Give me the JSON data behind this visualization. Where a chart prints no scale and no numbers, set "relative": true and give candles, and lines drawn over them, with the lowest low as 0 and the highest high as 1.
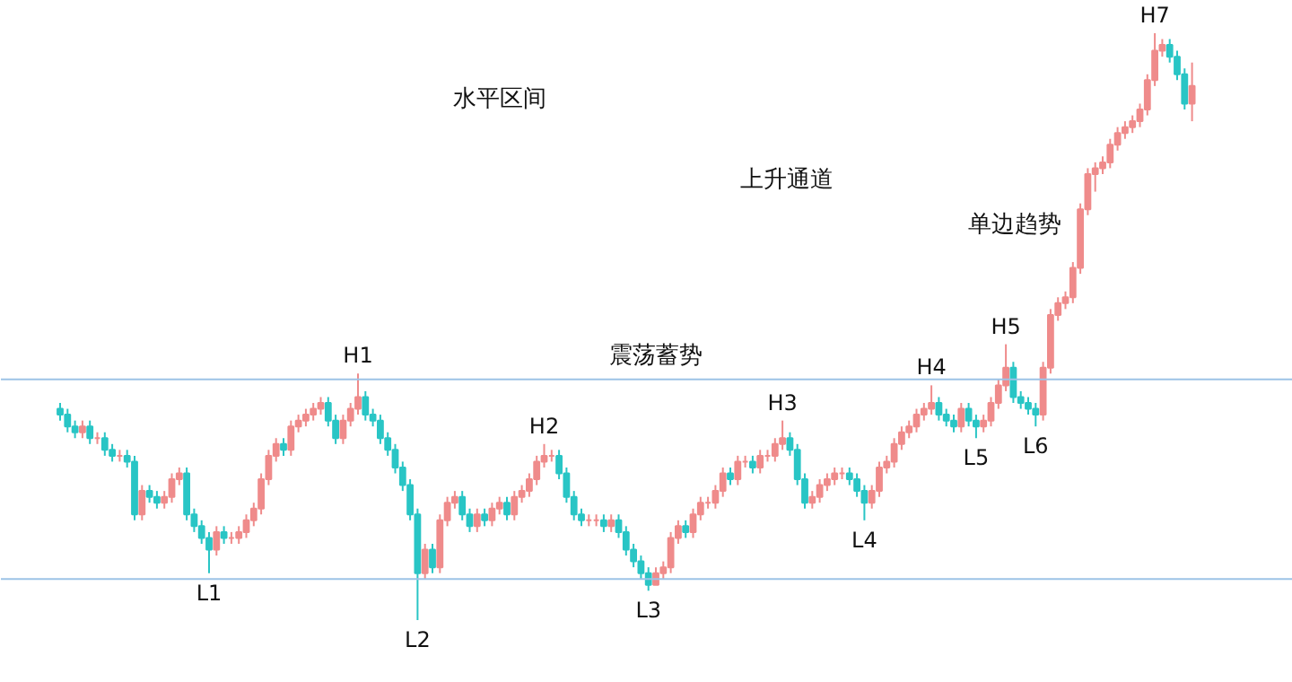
{
  "chart_data": {
    "type": "candlestick",
    "relative": true,
    "colors": [
      "#29c5c5",
      "#29c5c5",
      "#29c5c5",
      "#ef8b8b",
      "#29c5c5",
      "#ef8b8b",
      "#29c5c5",
      "#29c5c5",
      "#ef8b8b",
      "#29c5c5",
      "#29c5c5",
      "#ef8b8b",
      "#29c5c5",
      "#29c5c5",
      "#ef8b8b",
      "#ef8b8b",
      "#ef8b8b",
      "#29c5c5",
      "#29c5c5",
      "#29c5c5",
      "#29c5c5",
      "#ef8b8b",
      "#29c5c5",
      "#ef8b8b",
      "#ef8b8b",
      "#ef8b8b",
      "#ef8b8b",
      "#ef8b8b",
      "#ef8b8b",
      "#ef8b8b",
      "#29c5c5",
      "#ef8b8b",
      "#ef8b8b",
      "#ef8b8b",
      "#ef8b8b",
      "#ef8b8b",
      "#29c5c5",
      "#29c5c5",
      "#ef8b8b",
      "#ef8b8b",
      "#ef8b8b",
      "#29c5c5",
      "#29c5c5",
      "#29c5c5",
      "#29c5c5",
      "#29c5c5",
      "#29c5c5",
      "#29c5c5",
      "#29c5c5",
      "#ef8b8b",
      "#29c5c5",
      "#ef8b8b",
      "#ef8b8b",
      "#ef8b8b",
      "#29c5c5",
      "#29c5c5",
      "#ef8b8b",
      "#29c5c5",
      "#ef8b8b",
      "#ef8b8b",
      "#29c5c5",
      "#ef8b8b",
      "#ef8b8b",
      "#ef8b8b",
      "#ef8b8b",
      "#ef8b8b",
      "#ef8b8b",
      "#29c5c5",
      "#29c5c5",
      "#29c5c5",
      "#29c5c5",
      "#ef8b8b",
      "#ef8b8b",
      "#29c5c5",
      "#ef8b8b",
      "#29c5c5",
      "#29c5c5",
      "#29c5c5",
      "#29c5c5",
      "#29c5c5",
      "#ef8b8b",
      "#ef8b8b",
      "#ef8b8b",
      "#ef8b8b",
      "#29c5c5",
      "#ef8b8b",
      "#ef8b8b",
      "#ef8b8b",
      "#ef8b8b",
      "#ef8b8b",
      "#29c5c5",
      "#ef8b8b",
      "#ef8b8b",
      "#29c5c5",
      "#ef8b8b",
      "#ef8b8b",
      "#ef8b8b",
      "#ef8b8b",
      "#29c5c5",
      "#29c5c5",
      "#29c5c5",
      "#ef8b8b",
      "#ef8b8b",
      "#ef8b8b",
      "#ef8b8b",
      "#ef8b8b",
      "#29c5c5",
      "#29c5c5",
      "#29c5c5",
      "#ef8b8b",
      "#ef8b8b",
      "#ef8b8b",
      "#ef8b8b",
      "#ef8b8b",
      "#ef8b8b",
      "#ef8b8b",
      "#ef8b8b",
      "#ef8b8b",
      "#29c5c5",
      "#29c5c5",
      "#29c5c5",
      "#ef8b8b",
      "#29c5c5",
      "#29c5c5",
      "#ef8b8b",
      "#ef8b8b",
      "#ef8b8b",
      "#ef8b8b",
      "#29c5c5",
      "#29c5c5",
      "#29c5c5",
      "#29c5c5",
      "#ef8b8b",
      "#ef8b8b",
      "#ef8b8b",
      "#ef8b8b",
      "#ef8b8b",
      "#ef8b8b",
      "#ef8b8b",
      "#ef8b8b",
      "#ef8b8b",
      "#ef8b8b",
      "#ef8b8b",
      "#ef8b8b",
      "#ef8b8b",
      "#ef8b8b",
      "#ef8b8b",
      "#ef8b8b",
      "#ef8b8b",
      "#29c5c5",
      "#29c5c5",
      "#29c5c5",
      "#ef8b8b"
    ],
    "categories": [
      null,
      null,
      null,
      null,
      null,
      null,
      null,
      null,
      null,
      null,
      null,
      null,
      null,
      null,
      null,
      null,
      null,
      null,
      null,
      null,
      null,
      null,
      null,
      null,
      null,
      null,
      null,
      null,
      null,
      null,
      null,
      null,
      null,
      null,
      null,
      null,
      null,
      null,
      null,
      null,
      null,
      null,
      null,
      null,
      null,
      null,
      null,
      null,
      null,
      null,
      null,
      null,
      null,
      null,
      null,
      null,
      null,
      null,
      null,
      null,
      null,
      null,
      null,
      null,
      null,
      null,
      null,
      null,
      null,
      null,
      null,
      null,
      null,
      null,
      null,
      null,
      null,
      null,
      null,
      null,
      null,
      null,
      null,
      null,
      null,
      null,
      null,
      null,
      null,
      null,
      null,
      null,
      null,
      null,
      null,
      null,
      null,
      null,
      null,
      null,
      null,
      null,
      null,
      null,
      null,
      null,
      null,
      null,
      null,
      null,
      null,
      null,
      null,
      null,
      null,
      null,
      null,
      null,
      null,
      null,
      null,
      null,
      null,
      null,
      null,
      null,
      null,
      null,
      null,
      null,
      null,
      null,
      null,
      null,
      null,
      null,
      null,
      null,
      null,
      null,
      null,
      null,
      null,
      null,
      null,
      null,
      null,
      null,
      null,
      null,
      null,
      null,
      null
    ],
    "ohlc": [
      [
        0.36,
        0.37,
        0.34,
        0.35
      ],
      [
        0.35,
        0.36,
        0.32,
        0.33
      ],
      [
        0.33,
        0.34,
        0.31,
        0.32
      ],
      [
        0.32,
        0.34,
        0.31,
        0.33
      ],
      [
        0.33,
        0.34,
        0.3,
        0.31
      ],
      [
        0.31,
        0.32,
        0.3,
        0.31
      ],
      [
        0.31,
        0.32,
        0.28,
        0.29
      ],
      [
        0.29,
        0.3,
        0.27,
        0.28
      ],
      [
        0.28,
        0.29,
        0.27,
        0.28
      ],
      [
        0.28,
        0.29,
        0.26,
        0.27
      ],
      [
        0.27,
        0.28,
        0.17,
        0.18
      ],
      [
        0.18,
        0.23,
        0.17,
        0.22
      ],
      [
        0.22,
        0.23,
        0.2,
        0.21
      ],
      [
        0.21,
        0.22,
        0.19,
        0.2
      ],
      [
        0.2,
        0.22,
        0.19,
        0.21
      ],
      [
        0.21,
        0.25,
        0.2,
        0.24
      ],
      [
        0.24,
        0.26,
        0.23,
        0.25
      ],
      [
        0.25,
        0.26,
        0.17,
        0.18
      ],
      [
        0.18,
        0.19,
        0.15,
        0.16
      ],
      [
        0.16,
        0.17,
        0.13,
        0.14
      ],
      [
        0.14,
        0.15,
        0.08,
        0.12
      ],
      [
        0.12,
        0.16,
        0.11,
        0.15
      ],
      [
        0.15,
        0.16,
        0.13,
        0.14
      ],
      [
        0.14,
        0.15,
        0.13,
        0.14
      ],
      [
        0.14,
        0.16,
        0.13,
        0.15
      ],
      [
        0.15,
        0.18,
        0.14,
        0.17
      ],
      [
        0.17,
        0.2,
        0.16,
        0.19
      ],
      [
        0.19,
        0.25,
        0.18,
        0.24
      ],
      [
        0.24,
        0.29,
        0.23,
        0.28
      ],
      [
        0.28,
        0.31,
        0.27,
        0.3
      ],
      [
        0.3,
        0.31,
        0.28,
        0.29
      ],
      [
        0.29,
        0.34,
        0.28,
        0.33
      ],
      [
        0.33,
        0.35,
        0.32,
        0.34
      ],
      [
        0.34,
        0.36,
        0.33,
        0.35
      ],
      [
        0.35,
        0.37,
        0.34,
        0.36
      ],
      [
        0.36,
        0.38,
        0.35,
        0.37
      ],
      [
        0.37,
        0.38,
        0.33,
        0.34
      ],
      [
        0.34,
        0.35,
        0.3,
        0.31
      ],
      [
        0.31,
        0.35,
        0.3,
        0.34
      ],
      [
        0.34,
        0.37,
        0.33,
        0.36
      ],
      [
        0.36,
        0.42,
        0.35,
        0.38
      ],
      [
        0.38,
        0.39,
        0.34,
        0.35
      ],
      [
        0.35,
        0.36,
        0.33,
        0.34
      ],
      [
        0.34,
        0.35,
        0.3,
        0.31
      ],
      [
        0.31,
        0.32,
        0.28,
        0.29
      ],
      [
        0.29,
        0.3,
        0.25,
        0.26
      ],
      [
        0.26,
        0.27,
        0.22,
        0.23
      ],
      [
        0.23,
        0.24,
        0.17,
        0.18
      ],
      [
        0.18,
        0.19,
        0.0,
        0.08
      ],
      [
        0.08,
        0.13,
        0.07,
        0.12
      ],
      [
        0.12,
        0.13,
        0.08,
        0.09
      ],
      [
        0.09,
        0.18,
        0.08,
        0.17
      ],
      [
        0.17,
        0.21,
        0.16,
        0.2
      ],
      [
        0.2,
        0.22,
        0.19,
        0.21
      ],
      [
        0.21,
        0.22,
        0.17,
        0.18
      ],
      [
        0.18,
        0.19,
        0.15,
        0.16
      ],
      [
        0.16,
        0.19,
        0.15,
        0.18
      ],
      [
        0.18,
        0.19,
        0.16,
        0.17
      ],
      [
        0.17,
        0.2,
        0.16,
        0.19
      ],
      [
        0.19,
        0.21,
        0.18,
        0.2
      ],
      [
        0.2,
        0.21,
        0.17,
        0.18
      ],
      [
        0.18,
        0.22,
        0.17,
        0.21
      ],
      [
        0.21,
        0.23,
        0.2,
        0.22
      ],
      [
        0.22,
        0.25,
        0.21,
        0.24
      ],
      [
        0.24,
        0.28,
        0.23,
        0.27
      ],
      [
        0.27,
        0.3,
        0.26,
        0.28
      ],
      [
        0.28,
        0.29,
        0.27,
        0.28
      ],
      [
        0.28,
        0.29,
        0.24,
        0.25
      ],
      [
        0.25,
        0.26,
        0.2,
        0.21
      ],
      [
        0.21,
        0.22,
        0.17,
        0.18
      ],
      [
        0.18,
        0.19,
        0.16,
        0.17
      ],
      [
        0.17,
        0.18,
        0.16,
        0.17
      ],
      [
        0.17,
        0.18,
        0.16,
        0.17
      ],
      [
        0.17,
        0.18,
        0.15,
        0.16
      ],
      [
        0.16,
        0.18,
        0.15,
        0.17
      ],
      [
        0.17,
        0.18,
        0.14,
        0.15
      ],
      [
        0.15,
        0.16,
        0.11,
        0.12
      ],
      [
        0.12,
        0.13,
        0.09,
        0.1
      ],
      [
        0.1,
        0.11,
        0.07,
        0.08
      ],
      [
        0.08,
        0.09,
        0.05,
        0.06
      ],
      [
        0.06,
        0.09,
        0.06,
        0.08
      ],
      [
        0.08,
        0.1,
        0.07,
        0.09
      ],
      [
        0.09,
        0.15,
        0.08,
        0.14
      ],
      [
        0.14,
        0.17,
        0.13,
        0.16
      ],
      [
        0.16,
        0.17,
        0.14,
        0.15
      ],
      [
        0.15,
        0.19,
        0.14,
        0.18
      ],
      [
        0.18,
        0.21,
        0.17,
        0.2
      ],
      [
        0.2,
        0.21,
        0.19,
        0.2
      ],
      [
        0.2,
        0.23,
        0.19,
        0.22
      ],
      [
        0.22,
        0.26,
        0.21,
        0.25
      ],
      [
        0.25,
        0.26,
        0.23,
        0.24
      ],
      [
        0.24,
        0.28,
        0.23,
        0.27
      ],
      [
        0.27,
        0.28,
        0.26,
        0.27
      ],
      [
        0.27,
        0.28,
        0.25,
        0.26
      ],
      [
        0.26,
        0.29,
        0.25,
        0.28
      ],
      [
        0.28,
        0.29,
        0.27,
        0.28
      ],
      [
        0.28,
        0.31,
        0.27,
        0.3
      ],
      [
        0.3,
        0.34,
        0.29,
        0.31
      ],
      [
        0.31,
        0.32,
        0.28,
        0.29
      ],
      [
        0.29,
        0.3,
        0.23,
        0.24
      ],
      [
        0.24,
        0.25,
        0.19,
        0.2
      ],
      [
        0.2,
        0.22,
        0.19,
        0.21
      ],
      [
        0.21,
        0.24,
        0.2,
        0.23
      ],
      [
        0.23,
        0.25,
        0.22,
        0.24
      ],
      [
        0.24,
        0.26,
        0.23,
        0.25
      ],
      [
        0.25,
        0.26,
        0.24,
        0.25
      ],
      [
        0.25,
        0.26,
        0.23,
        0.24
      ],
      [
        0.24,
        0.25,
        0.21,
        0.22
      ],
      [
        0.22,
        0.23,
        0.17,
        0.2
      ],
      [
        0.2,
        0.23,
        0.19,
        0.22
      ],
      [
        0.22,
        0.27,
        0.21,
        0.26
      ],
      [
        0.26,
        0.28,
        0.25,
        0.27
      ],
      [
        0.27,
        0.31,
        0.26,
        0.3
      ],
      [
        0.3,
        0.33,
        0.29,
        0.32
      ],
      [
        0.32,
        0.34,
        0.31,
        0.33
      ],
      [
        0.33,
        0.36,
        0.32,
        0.35
      ],
      [
        0.35,
        0.37,
        0.34,
        0.36
      ],
      [
        0.36,
        0.4,
        0.35,
        0.37
      ],
      [
        0.37,
        0.38,
        0.34,
        0.35
      ],
      [
        0.35,
        0.36,
        0.33,
        0.34
      ],
      [
        0.34,
        0.35,
        0.32,
        0.33
      ],
      [
        0.33,
        0.37,
        0.32,
        0.36
      ],
      [
        0.36,
        0.37,
        0.33,
        0.34
      ],
      [
        0.34,
        0.35,
        0.31,
        0.33
      ],
      [
        0.33,
        0.35,
        0.32,
        0.34
      ],
      [
        0.34,
        0.38,
        0.33,
        0.37
      ],
      [
        0.37,
        0.41,
        0.36,
        0.4
      ],
      [
        0.4,
        0.47,
        0.39,
        0.43
      ],
      [
        0.43,
        0.44,
        0.37,
        0.38
      ],
      [
        0.38,
        0.39,
        0.36,
        0.37
      ],
      [
        0.37,
        0.38,
        0.35,
        0.36
      ],
      [
        0.36,
        0.37,
        0.33,
        0.35
      ],
      [
        0.35,
        0.44,
        0.34,
        0.43
      ],
      [
        0.43,
        0.53,
        0.42,
        0.52
      ],
      [
        0.52,
        0.55,
        0.51,
        0.54
      ],
      [
        0.54,
        0.56,
        0.53,
        0.55
      ],
      [
        0.55,
        0.61,
        0.54,
        0.6
      ],
      [
        0.6,
        0.71,
        0.59,
        0.7
      ],
      [
        0.7,
        0.77,
        0.69,
        0.76
      ],
      [
        0.76,
        0.78,
        0.73,
        0.77
      ],
      [
        0.77,
        0.79,
        0.76,
        0.78
      ],
      [
        0.78,
        0.82,
        0.77,
        0.81
      ],
      [
        0.81,
        0.84,
        0.8,
        0.83
      ],
      [
        0.83,
        0.85,
        0.82,
        0.84
      ],
      [
        0.84,
        0.86,
        0.83,
        0.85
      ],
      [
        0.85,
        0.88,
        0.84,
        0.87
      ],
      [
        0.87,
        0.93,
        0.86,
        0.92
      ],
      [
        0.92,
        1.0,
        0.91,
        0.97
      ],
      [
        0.97,
        0.99,
        0.96,
        0.98
      ],
      [
        0.98,
        0.99,
        0.95,
        0.96
      ],
      [
        0.96,
        0.97,
        0.92,
        0.93
      ],
      [
        0.93,
        0.94,
        0.87,
        0.88
      ],
      [
        0.88,
        0.95,
        0.85,
        0.91
      ]
    ],
    "ref_lines": [
      {
        "axis": "y",
        "value": 0.41,
        "color": "#9dc3e6"
      },
      {
        "axis": "y",
        "value": 0.07,
        "color": "#9dc3e6"
      }
    ],
    "annotations": [
      "震荡蓄势",
      "水平区间",
      "上升通道",
      "单边趋势",
      {
        "text": "H1",
        "y": 0.42
      },
      {
        "text": "H2",
        "y": 0.3
      },
      {
        "text": "H3",
        "y": 0.34
      },
      {
        "text": "H4",
        "y": 0.4
      },
      {
        "text": "H5",
        "y": 0.47
      },
      {
        "text": "H7",
        "y": 1.0
      },
      {
        "text": "L1",
        "y": 0.08
      },
      {
        "text": "L2",
        "y": 0.0
      },
      {
        "text": "L3",
        "y": 0.05
      },
      {
        "text": "L4",
        "y": 0.17
      },
      {
        "text": "L5",
        "y": 0.31
      },
      {
        "text": "L6",
        "y": 0.33
      }
    ]
  }
}
